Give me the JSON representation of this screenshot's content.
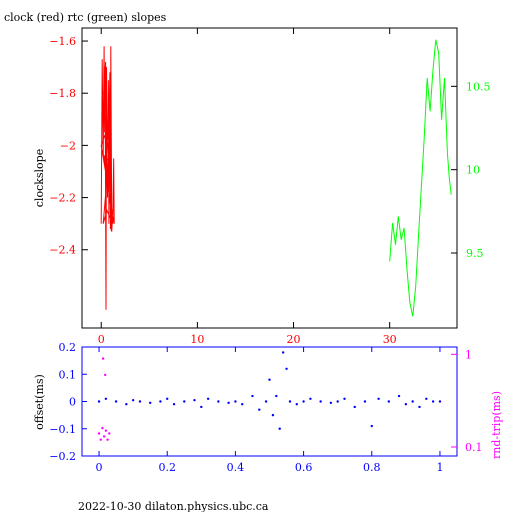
{
  "page": {
    "footer": "2022-10-30  dilaton.physics.ubc.ca"
  },
  "chart_data": [
    {
      "type": "line",
      "title": "clock (red) rtc (green) slopes",
      "xlabel": "",
      "ylabel": "clockslope",
      "xlim": [
        -2,
        37
      ],
      "ylim": [
        -2.7,
        -1.55
      ],
      "y2lim": [
        9.05,
        10.85
      ],
      "x_ticks": [
        0,
        10,
        20,
        30
      ],
      "y_ticks": [
        -1.6,
        -1.8,
        -2,
        -2.2,
        -2.4
      ],
      "y2_ticks": [
        10.5,
        10,
        9.5
      ],
      "grid": false,
      "colors": {
        "clock": "#ff0000",
        "rtc": "#00ff00",
        "axes": "#000000"
      },
      "series": [
        {
          "name": "clock",
          "axis": "left",
          "x": [
            0.0,
            0.1,
            0.2,
            0.3,
            0.35,
            0.4,
            0.5,
            0.55,
            0.6,
            0.7,
            0.75,
            0.8,
            0.9,
            0.95,
            1.0,
            1.1,
            1.15,
            1.2,
            1.3,
            1.35,
            0.0,
            0.5,
            1.0,
            0.2,
            0.6,
            1.2,
            0.3,
            0.8,
            0.25,
            0.45,
            0.65,
            0.9,
            1.05
          ],
          "y": [
            -2.3,
            -1.67,
            -2.05,
            -1.62,
            -1.95,
            -1.72,
            -2.63,
            -1.7,
            -1.9,
            -1.98,
            -1.75,
            -2.3,
            -1.8,
            -2.32,
            -1.62,
            -2.33,
            -2.28,
            -2.3,
            -2.05,
            -2.3,
            -2.0,
            -1.95,
            -1.95,
            -2.3,
            -2.25,
            -2.3,
            -2.04,
            -2.06,
            -1.8,
            -1.68,
            -2.2,
            -1.72,
            -2.33
          ]
        },
        {
          "name": "rtc",
          "axis": "right",
          "x": [
            30.0,
            30.3,
            30.6,
            30.9,
            31.2,
            31.5,
            31.8,
            32.1,
            32.4,
            32.7,
            33.0,
            33.3,
            33.6,
            33.9,
            34.2,
            34.5,
            34.8,
            35.1,
            35.4,
            35.7,
            36.0,
            36.2,
            36.4
          ],
          "y": [
            9.45,
            9.68,
            9.55,
            9.72,
            9.58,
            9.65,
            9.4,
            9.2,
            9.12,
            9.3,
            9.6,
            9.9,
            10.2,
            10.55,
            10.35,
            10.6,
            10.78,
            10.7,
            10.3,
            10.55,
            10.1,
            9.95,
            9.85
          ]
        }
      ]
    },
    {
      "type": "scatter",
      "ylabel": "offset(ms)",
      "y2label": "rnd-trip(ms)",
      "xlim": [
        -0.05,
        1.05
      ],
      "ylim": [
        -0.2,
        0.2
      ],
      "y2lim": [
        0.08,
        1.2
      ],
      "y2scale": "log",
      "x_ticks": [
        0,
        0.2,
        0.4,
        0.6,
        0.8,
        1
      ],
      "y_ticks": [
        0.2,
        0.1,
        0,
        -0.1,
        -0.2
      ],
      "y2_ticks": [
        1,
        0.1
      ],
      "grid": false,
      "colors": {
        "offset": "#0000ff",
        "roundtrip": "#ff00ff",
        "axes": "#0000ff"
      },
      "series": [
        {
          "name": "offset",
          "axis": "left",
          "x": [
            0.0,
            0.02,
            0.05,
            0.08,
            0.1,
            0.12,
            0.15,
            0.18,
            0.2,
            0.22,
            0.25,
            0.28,
            0.3,
            0.32,
            0.35,
            0.38,
            0.4,
            0.42,
            0.45,
            0.47,
            0.49,
            0.5,
            0.51,
            0.52,
            0.53,
            0.54,
            0.55,
            0.56,
            0.58,
            0.6,
            0.62,
            0.65,
            0.68,
            0.7,
            0.72,
            0.75,
            0.78,
            0.8,
            0.82,
            0.85,
            0.88,
            0.9,
            0.92,
            0.94,
            0.96,
            0.98,
            1.0
          ],
          "y": [
            0.0,
            0.01,
            0.0,
            -0.01,
            0.005,
            0.0,
            -0.005,
            0.0,
            0.01,
            -0.01,
            0.0,
            0.005,
            -0.02,
            0.01,
            0.0,
            -0.005,
            0.0,
            -0.01,
            0.02,
            -0.03,
            0.0,
            0.08,
            -0.05,
            0.02,
            -0.1,
            0.18,
            0.12,
            0.0,
            -0.01,
            0.0,
            0.01,
            0.0,
            -0.005,
            0.0,
            0.01,
            -0.02,
            0.0,
            -0.09,
            0.01,
            0.0,
            0.02,
            -0.01,
            0.0,
            -0.02,
            0.01,
            0.0,
            0.0
          ]
        },
        {
          "name": "roundtrip",
          "axis": "right",
          "x": [
            0.0,
            0.005,
            0.01,
            0.015,
            0.02,
            0.025,
            0.03,
            0.012,
            0.018
          ],
          "y": [
            0.14,
            0.12,
            0.16,
            0.13,
            0.15,
            0.12,
            0.14,
            0.9,
            0.6
          ]
        }
      ]
    }
  ]
}
